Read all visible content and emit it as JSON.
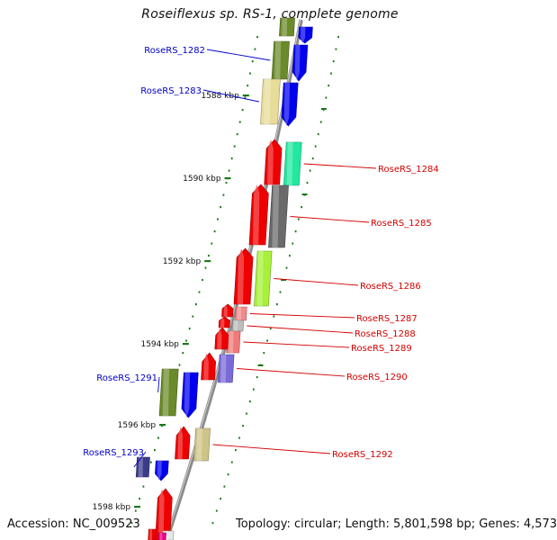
{
  "title": "Roseiflexus sp. RS-1, complete genome",
  "footer": {
    "accession": "Accession: NC_009523",
    "summary": "Topology: circular; Length: 5,801,598 bp; Genes: 4,573"
  },
  "colors": {
    "backbone": "#8a8a8a",
    "ticks": "#1a7a1a",
    "label_forward": "#0000c8",
    "label_reverse": "#d40000"
  },
  "ruler": [
    {
      "label": "1588 kbp"
    },
    {
      "label": "1590 kbp"
    },
    {
      "label": "1592 kbp"
    },
    {
      "label": "1594 kbp"
    },
    {
      "label": "1596 kbp"
    },
    {
      "label": "1598 kbp"
    }
  ],
  "genes": [
    {
      "label": "",
      "strand": "forward",
      "color": "#6b8a2a"
    },
    {
      "label": "",
      "strand": "forward",
      "color": "#0000ee"
    },
    {
      "label": "RoseRS_1282",
      "strand": "forward",
      "color": "#6b8a2a"
    },
    {
      "label": "",
      "strand": "forward",
      "color": "#0000ee"
    },
    {
      "label": "RoseRS_1283",
      "strand": "forward",
      "color": "#e8dc9a"
    },
    {
      "label": "",
      "strand": "forward",
      "color": "#0000ee"
    },
    {
      "label": "",
      "strand": "reverse",
      "color": "#ee0000"
    },
    {
      "label": "RoseRS_1284",
      "strand": "reverse",
      "color": "#22e8a0"
    },
    {
      "label": "",
      "strand": "reverse",
      "color": "#ee0000"
    },
    {
      "label": "RoseRS_1285",
      "strand": "reverse",
      "color": "#6a6a6a"
    },
    {
      "label": "",
      "strand": "reverse",
      "color": "#ee0000"
    },
    {
      "label": "RoseRS_1286",
      "strand": "reverse",
      "color": "#a8f03a"
    },
    {
      "label": "RoseRS_1287",
      "strand": "reverse",
      "color": "#f08a8a"
    },
    {
      "label": "RoseRS_1288",
      "strand": "reverse",
      "color": "#bdbdbd"
    },
    {
      "label": "RoseRS_1289",
      "strand": "reverse",
      "color": "#f07a7a"
    },
    {
      "label": "RoseRS_1290",
      "strand": "reverse",
      "color": "#7a6ad8"
    },
    {
      "label": "RoseRS_1291",
      "strand": "forward",
      "color": "#6b8a2a"
    },
    {
      "label": "",
      "strand": "forward",
      "color": "#0000ee"
    },
    {
      "label": "RoseRS_1292",
      "strand": "reverse",
      "color": "#cfc488"
    },
    {
      "label": "",
      "strand": "reverse",
      "color": "#ee0000"
    },
    {
      "label": "RoseRS_1293",
      "strand": "forward",
      "color": "#3b3b8a"
    },
    {
      "label": "",
      "strand": "forward",
      "color": "#0000ee"
    },
    {
      "label": "",
      "strand": "reverse",
      "color": "#ee0000"
    },
    {
      "label": "",
      "strand": "reverse",
      "color": "#e8e8e8"
    },
    {
      "label": "",
      "strand": "reverse",
      "color": "#ee0000"
    },
    {
      "label": "",
      "strand": "reverse",
      "color": "#ee0088"
    }
  ]
}
